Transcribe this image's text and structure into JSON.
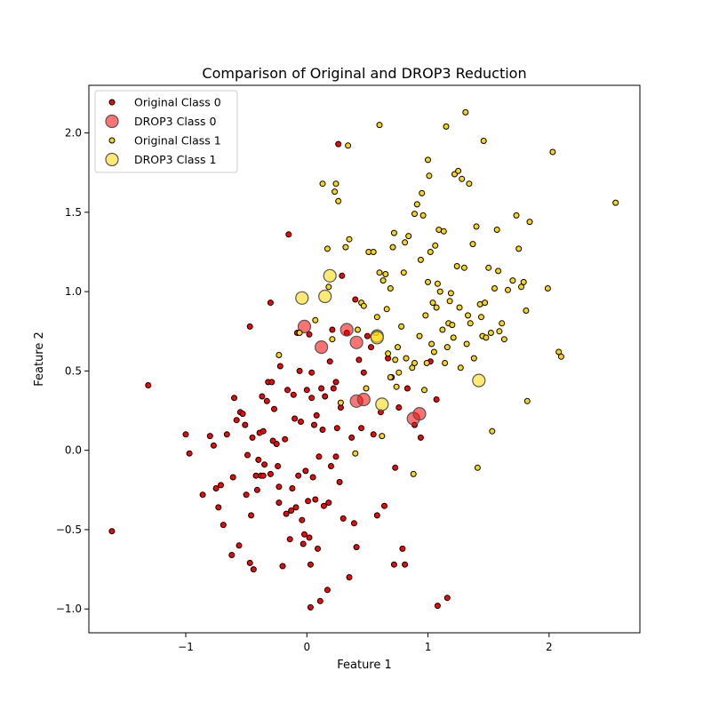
{
  "chart_data": {
    "type": "scatter",
    "title": "Comparison of Original and DROP3 Reduction",
    "xlabel": "Feature 1",
    "ylabel": "Feature 2",
    "xlim": [
      -1.8,
      2.75
    ],
    "ylim": [
      -1.15,
      2.3
    ],
    "xticks": [
      -1,
      0,
      1,
      2
    ],
    "yticks": [
      -1.0,
      -0.5,
      0.0,
      0.5,
      1.0,
      1.5,
      2.0
    ],
    "xtick_labels": [
      "−1",
      "0",
      "1",
      "2"
    ],
    "ytick_labels": [
      "−1.0",
      "−0.5",
      "0.0",
      "0.5",
      "1.0",
      "1.5",
      "2.0"
    ],
    "grid": false,
    "legend_position": "top-left",
    "series": [
      {
        "name": "Original Class 0",
        "color": "#ff0000",
        "marker": "small",
        "points": [
          [
            -1.61,
            -0.51
          ],
          [
            -1.31,
            0.41
          ],
          [
            -1.0,
            0.1
          ],
          [
            -0.97,
            -0.02
          ],
          [
            -0.86,
            -0.28
          ],
          [
            -0.8,
            0.09
          ],
          [
            -0.77,
            0.03
          ],
          [
            -0.75,
            -0.24
          ],
          [
            -0.73,
            -0.36
          ],
          [
            -0.71,
            -0.22
          ],
          [
            -0.69,
            -0.47
          ],
          [
            -0.66,
            0.1
          ],
          [
            -0.62,
            -0.66
          ],
          [
            -0.61,
            -0.17
          ],
          [
            -0.6,
            0.33
          ],
          [
            -0.58,
            0.19
          ],
          [
            -0.56,
            -0.6
          ],
          [
            -0.55,
            0.24
          ],
          [
            -0.53,
            0.23
          ],
          [
            -0.51,
            0.16
          ],
          [
            -0.5,
            -0.28
          ],
          [
            -0.49,
            -0.03
          ],
          [
            -0.47,
            -0.71
          ],
          [
            -0.47,
            0.78
          ],
          [
            -0.46,
            -0.41
          ],
          [
            -0.45,
            0.08
          ],
          [
            -0.44,
            -0.75
          ],
          [
            -0.42,
            -0.16
          ],
          [
            -0.41,
            -0.25
          ],
          [
            -0.4,
            -0.06
          ],
          [
            -0.39,
            0.11
          ],
          [
            -0.38,
            -0.16
          ],
          [
            -0.37,
            0.34
          ],
          [
            -0.36,
            -0.16
          ],
          [
            -0.36,
            0.12
          ],
          [
            -0.35,
            -0.09
          ],
          [
            -0.33,
            0.31
          ],
          [
            -0.32,
            0.43
          ],
          [
            -0.3,
            -0.15
          ],
          [
            -0.3,
            0.93
          ],
          [
            -0.29,
            0.43
          ],
          [
            -0.28,
            0.06
          ],
          [
            -0.27,
            0.26
          ],
          [
            -0.25,
            0.04
          ],
          [
            -0.24,
            -0.1
          ],
          [
            -0.23,
            -0.33
          ],
          [
            -0.23,
            -0.23
          ],
          [
            -0.22,
            0.53
          ],
          [
            -0.2,
            -0.73
          ],
          [
            -0.18,
            0.07
          ],
          [
            -0.17,
            -0.4
          ],
          [
            -0.16,
            0.38
          ],
          [
            -0.15,
            1.36
          ],
          [
            -0.14,
            -0.56
          ],
          [
            -0.13,
            -0.38
          ],
          [
            -0.12,
            -0.24
          ],
          [
            -0.11,
            0.35
          ],
          [
            -0.1,
            0.2
          ],
          [
            -0.09,
            -0.36
          ],
          [
            -0.08,
            0.74
          ],
          [
            -0.07,
            -0.16
          ],
          [
            -0.06,
            0.5
          ],
          [
            -0.05,
            0.18
          ],
          [
            -0.04,
            -0.44
          ],
          [
            -0.03,
            -0.59
          ],
          [
            -0.02,
            -0.53
          ],
          [
            -0.01,
            -0.13
          ],
          [
            0.0,
            0.38
          ],
          [
            0.01,
            -0.32
          ],
          [
            0.02,
            -0.55
          ],
          [
            0.02,
            0.73
          ],
          [
            0.03,
            -0.72
          ],
          [
            0.03,
            -0.99
          ],
          [
            0.04,
            0.49
          ],
          [
            0.04,
            0.33
          ],
          [
            0.05,
            -0.17
          ],
          [
            0.06,
            0.16
          ],
          [
            0.07,
            -0.31
          ],
          [
            0.08,
            0.22
          ],
          [
            0.09,
            -0.62
          ],
          [
            0.1,
            -0.04
          ],
          [
            0.11,
            -0.95
          ],
          [
            0.12,
            0.39
          ],
          [
            0.13,
            0.13
          ],
          [
            0.14,
            -0.35
          ],
          [
            0.15,
            0.34
          ],
          [
            0.17,
            -0.88
          ],
          [
            0.18,
            -0.33
          ],
          [
            0.19,
            0.56
          ],
          [
            0.2,
            -0.1
          ],
          [
            0.21,
            0.76
          ],
          [
            0.22,
            0.39
          ],
          [
            0.24,
            0.43
          ],
          [
            0.24,
            -0.04
          ],
          [
            0.25,
            0.14
          ],
          [
            0.26,
            1.93
          ],
          [
            0.27,
            -0.2
          ],
          [
            0.28,
            0.27
          ],
          [
            0.29,
            1.1
          ],
          [
            0.3,
            -0.43
          ],
          [
            0.33,
            0.74
          ],
          [
            0.35,
            -0.8
          ],
          [
            0.37,
            0.08
          ],
          [
            0.39,
            -0.46
          ],
          [
            0.4,
            0.95
          ],
          [
            0.41,
            -0.61
          ],
          [
            0.43,
            0.57
          ],
          [
            0.45,
            0.14
          ],
          [
            0.47,
            0.49
          ],
          [
            0.5,
            0.72
          ],
          [
            0.53,
            0.65
          ],
          [
            0.55,
            0.1
          ],
          [
            0.58,
            -0.41
          ],
          [
            0.61,
            0.24
          ],
          [
            0.64,
            -0.35
          ],
          [
            0.67,
            0.58
          ],
          [
            0.7,
            0.46
          ],
          [
            0.72,
            -0.72
          ],
          [
            0.73,
            -0.11
          ],
          [
            0.76,
            0.27
          ],
          [
            0.79,
            -0.62
          ],
          [
            0.81,
            -0.72
          ],
          [
            0.83,
            0.39
          ],
          [
            0.89,
            0.16
          ],
          [
            0.94,
            0.08
          ],
          [
            1.02,
            0.56
          ],
          [
            1.07,
            0.32
          ],
          [
            1.08,
            -0.98
          ],
          [
            1.16,
            -0.93
          ]
        ]
      },
      {
        "name": "DROP3 Class 0",
        "color": "#ff0000",
        "marker": "large",
        "points": [
          [
            -0.02,
            0.78
          ],
          [
            0.12,
            0.65
          ],
          [
            0.33,
            0.76
          ],
          [
            0.41,
            0.68
          ],
          [
            0.41,
            0.31
          ],
          [
            0.47,
            0.32
          ],
          [
            0.88,
            0.2
          ],
          [
            0.93,
            0.23
          ]
        ]
      },
      {
        "name": "Original Class 1",
        "color": "#ffd700",
        "marker": "small",
        "points": [
          [
            -0.23,
            0.6
          ],
          [
            -0.06,
            0.74
          ],
          [
            0.07,
            0.82
          ],
          [
            0.13,
            1.68
          ],
          [
            0.17,
            1.27
          ],
          [
            0.18,
            1.03
          ],
          [
            0.21,
            0.7
          ],
          [
            0.23,
            1.63
          ],
          [
            0.24,
            1.68
          ],
          [
            0.26,
            1.57
          ],
          [
            0.28,
            0.3
          ],
          [
            0.32,
            1.28
          ],
          [
            0.34,
            1.92
          ],
          [
            0.35,
            1.33
          ],
          [
            0.4,
            -0.02
          ],
          [
            0.42,
            0.76
          ],
          [
            0.45,
            0.93
          ],
          [
            0.47,
            0.91
          ],
          [
            0.49,
            0.39
          ],
          [
            0.51,
            1.25
          ],
          [
            0.55,
            1.25
          ],
          [
            0.57,
            0.74
          ],
          [
            0.58,
            0.84
          ],
          [
            0.6,
            1.12
          ],
          [
            0.6,
            2.05
          ],
          [
            0.62,
            0.09
          ],
          [
            0.63,
            1.07
          ],
          [
            0.65,
            1.11
          ],
          [
            0.66,
            0.89
          ],
          [
            0.67,
            0.61
          ],
          [
            0.69,
            1.02
          ],
          [
            0.69,
            0.46
          ],
          [
            0.71,
            1.28
          ],
          [
            0.72,
            1.37
          ],
          [
            0.73,
            0.57
          ],
          [
            0.74,
            0.4
          ],
          [
            0.75,
            0.65
          ],
          [
            0.76,
            0.49
          ],
          [
            0.78,
            0.78
          ],
          [
            0.8,
            1.12
          ],
          [
            0.81,
            1.31
          ],
          [
            0.82,
            0.58
          ],
          [
            0.84,
            1.35
          ],
          [
            0.87,
            0.52
          ],
          [
            0.88,
            -0.15
          ],
          [
            0.89,
            0.55
          ],
          [
            0.89,
            1.49
          ],
          [
            0.91,
            1.55
          ],
          [
            0.93,
            0.72
          ],
          [
            0.94,
            1.2
          ],
          [
            0.95,
            1.62
          ],
          [
            0.96,
            1.48
          ],
          [
            0.97,
            0.38
          ],
          [
            0.98,
            0.85
          ],
          [
            0.99,
            0.55
          ],
          [
            1.0,
            1.83
          ],
          [
            1.0,
            1.06
          ],
          [
            1.01,
            1.73
          ],
          [
            1.02,
            1.25
          ],
          [
            1.03,
            0.67
          ],
          [
            1.04,
            0.93
          ],
          [
            1.05,
            0.62
          ],
          [
            1.06,
            1.29
          ],
          [
            1.07,
            0.9
          ],
          [
            1.08,
            1.05
          ],
          [
            1.09,
            1.39
          ],
          [
            1.1,
            1.0
          ],
          [
            1.12,
            0.76
          ],
          [
            1.13,
            1.38
          ],
          [
            1.14,
            0.55
          ],
          [
            1.15,
            2.04
          ],
          [
            1.16,
            0.65
          ],
          [
            1.17,
            0.8
          ],
          [
            1.18,
            0.94
          ],
          [
            1.19,
            0.99
          ],
          [
            1.2,
            0.79
          ],
          [
            1.21,
            0.71
          ],
          [
            1.22,
            1.74
          ],
          [
            1.24,
            1.16
          ],
          [
            1.25,
            1.76
          ],
          [
            1.26,
            0.9
          ],
          [
            1.27,
            0.52
          ],
          [
            1.28,
            1.71
          ],
          [
            1.3,
            1.15
          ],
          [
            1.31,
            2.13
          ],
          [
            1.32,
            0.67
          ],
          [
            1.33,
            0.85
          ],
          [
            1.34,
            1.68
          ],
          [
            1.35,
            0.8
          ],
          [
            1.37,
            1.3
          ],
          [
            1.38,
            0.58
          ],
          [
            1.4,
            1.41
          ],
          [
            1.41,
            -0.11
          ],
          [
            1.43,
            0.92
          ],
          [
            1.44,
            0.84
          ],
          [
            1.45,
            0.72
          ],
          [
            1.46,
            1.95
          ],
          [
            1.47,
            0.93
          ],
          [
            1.48,
            0.71
          ],
          [
            1.5,
            1.15
          ],
          [
            1.52,
            0.74
          ],
          [
            1.53,
            0.12
          ],
          [
            1.55,
            1.02
          ],
          [
            1.57,
            1.39
          ],
          [
            1.58,
            1.13
          ],
          [
            1.59,
            0.75
          ],
          [
            1.61,
            0.8
          ],
          [
            1.63,
            0.7
          ],
          [
            1.66,
            1.01
          ],
          [
            1.7,
            1.07
          ],
          [
            1.73,
            1.48
          ],
          [
            1.75,
            1.27
          ],
          [
            1.77,
            1.03
          ],
          [
            1.79,
            1.06
          ],
          [
            1.81,
            0.88
          ],
          [
            1.82,
            0.31
          ],
          [
            1.84,
            1.44
          ],
          [
            1.99,
            1.02
          ],
          [
            2.03,
            1.88
          ],
          [
            2.08,
            0.62
          ],
          [
            2.1,
            0.59
          ],
          [
            2.55,
            1.56
          ]
        ]
      },
      {
        "name": "DROP3 Class 1",
        "color": "#ffd700",
        "marker": "large",
        "points": [
          [
            -0.04,
            0.96
          ],
          [
            0.15,
            0.97
          ],
          [
            0.19,
            1.1
          ],
          [
            0.58,
            0.72
          ],
          [
            0.58,
            0.71
          ],
          [
            0.62,
            0.29
          ],
          [
            1.42,
            0.44
          ]
        ]
      }
    ]
  }
}
